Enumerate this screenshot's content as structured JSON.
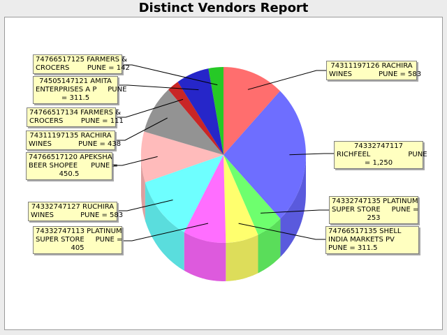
{
  "title": "Distinct Vendors Report",
  "chart_data": {
    "type": "pie",
    "style": "3d-cylinder",
    "title": "Distinct Vendors Report",
    "slices": [
      {
        "id": "rachira-583-right",
        "value": 583,
        "color": "#ff5555"
      },
      {
        "id": "richfeel",
        "value": 1250,
        "color": "#5555ff"
      },
      {
        "id": "platinum-253",
        "value": 253,
        "color": "#55ff55"
      },
      {
        "id": "shell",
        "value": 311.5,
        "color": "#ffff55"
      },
      {
        "id": "platinum-405",
        "value": 405,
        "color": "#ff55ff"
      },
      {
        "id": "ruchira",
        "value": 583,
        "color": "#55ffff"
      },
      {
        "id": "apeksha",
        "value": 450.5,
        "color": "#ffafaf"
      },
      {
        "id": "rachira-438",
        "value": 438,
        "color": "#808080"
      },
      {
        "id": "farmers-111",
        "value": 111,
        "color": "#c00000"
      },
      {
        "id": "amita",
        "value": 311.5,
        "color": "#0000c0"
      },
      {
        "id": "farmers-142",
        "value": 142,
        "color": "#00c000"
      }
    ]
  },
  "labels": {
    "rachira-583-right": "74311197126 RACHIRA\nWINES            PUNE = 583",
    "richfeel": "74332747117\nRICHFEEL                 PUNE\n= 1,250",
    "platinum-253": "74332747135 PLATINUM\nSUPER STORE     PUNE =\n253",
    "shell": "74766517135 SHELL\nINDIA MARKETS PV\nPUNE = 311.5",
    "platinum-405": "74332747113 PLATINUM\nSUPER STORE     PUNE =\n405",
    "ruchira": "74332747127 RUCHIRA\nWINES            PUNE = 583",
    "apeksha": "74766517120 APEKSHA\nBEER SHOPEE      PUNE =\n450.5",
    "rachira-438": "74311197135 RACHIRA\nWINES            PUNE = 438",
    "farmers-111": "74766517134 FARMERS &\nCROCERS        PUNE = 111",
    "amita": "74505147121 AMITA\nENTERPRISES A P     PUNE\n= 311.5",
    "farmers-142": "74766517125 FARMERS &\nCROCERS        PUNE = 142"
  }
}
